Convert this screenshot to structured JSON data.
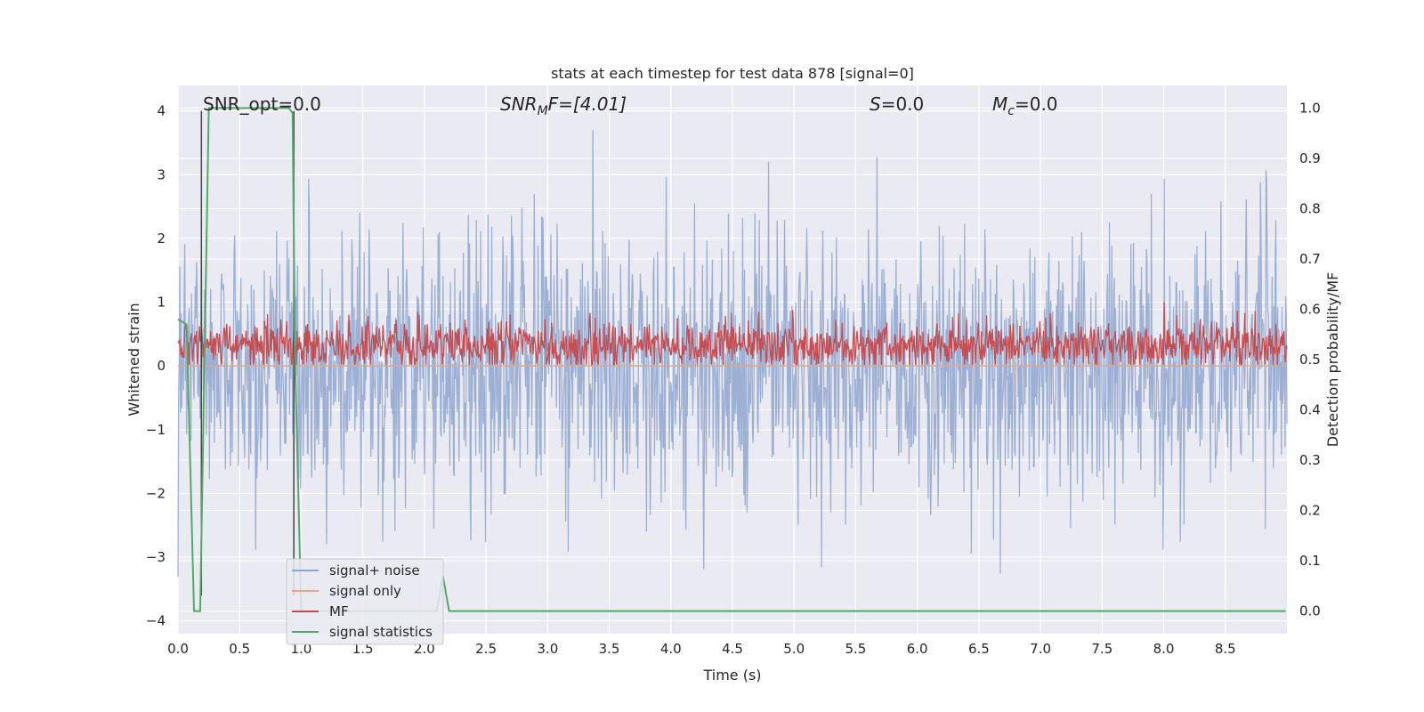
{
  "chart_data": {
    "type": "line",
    "title": "stats at each timestep for test data 878 [signal=0]",
    "xlabel": "Time (s)",
    "ylabel_left": "Whitened strain",
    "ylabel_right": "Detection probability/MF",
    "xlim": [
      0.0,
      9.0
    ],
    "ylim_left": [
      -4.2,
      4.4
    ],
    "ylim_right": [
      -0.045,
      1.045
    ],
    "x_ticks": [
      "0.0",
      "0.5",
      "1.0",
      "1.5",
      "2.0",
      "2.5",
      "3.0",
      "3.5",
      "4.0",
      "4.5",
      "5.0",
      "5.5",
      "6.0",
      "6.5",
      "7.0",
      "7.5",
      "8.0",
      "8.5"
    ],
    "y_ticks_left": [
      "4",
      "3",
      "2",
      "1",
      "0",
      "−1",
      "−2",
      "−3",
      "−4"
    ],
    "y_ticks_right": [
      "1.0",
      "0.9",
      "0.8",
      "0.7",
      "0.6",
      "0.5",
      "0.4",
      "0.3",
      "0.2",
      "0.1",
      "0.0"
    ],
    "grid": true,
    "legend_position": "lower-left",
    "annotations": {
      "snr_opt": "SNR_opt=0.0",
      "snr_mf_prefix": "SNR",
      "snr_mf_sub": "M",
      "snr_mf_suffix": "F=[4.01]",
      "s_symbol": "S",
      "s_value": "=0.0",
      "mc_symbol": "M",
      "mc_sub": "c",
      "mc_value": "=0.0"
    },
    "series": [
      {
        "name": "signal+ noise",
        "color": "#8fa6cf",
        "axis": "left",
        "kind": "noise",
        "amplitude": [
          -3.7,
          3.7
        ]
      },
      {
        "name": "signal only",
        "color": "#e8a57f",
        "axis": "left",
        "kind": "flat",
        "value": 0.0
      },
      {
        "name": "MF",
        "color": "#c44e52",
        "axis": "left",
        "kind": "noise-band",
        "range": [
          0.0,
          1.0
        ]
      },
      {
        "name": "signal statistics",
        "color": "#55a868",
        "axis": "right",
        "x": [
          0.0,
          0.07,
          0.13,
          0.18,
          0.25,
          0.3,
          0.85,
          0.9,
          0.93,
          0.95,
          1.0,
          2.05,
          2.1,
          2.15,
          2.2,
          8.99
        ],
        "y": [
          0.58,
          0.57,
          0.0,
          0.0,
          1.0,
          1.0,
          1.0,
          1.0,
          0.99,
          0.5,
          0.0,
          0.0,
          0.0,
          0.07,
          0.0,
          0.0
        ]
      }
    ],
    "vlines": [
      {
        "x": 0.19,
        "y": [
          -3.6,
          4.0
        ],
        "color": "#444444"
      },
      {
        "x": 0.94,
        "y": [
          -3.6,
          4.0
        ],
        "color": "#444444"
      }
    ]
  }
}
